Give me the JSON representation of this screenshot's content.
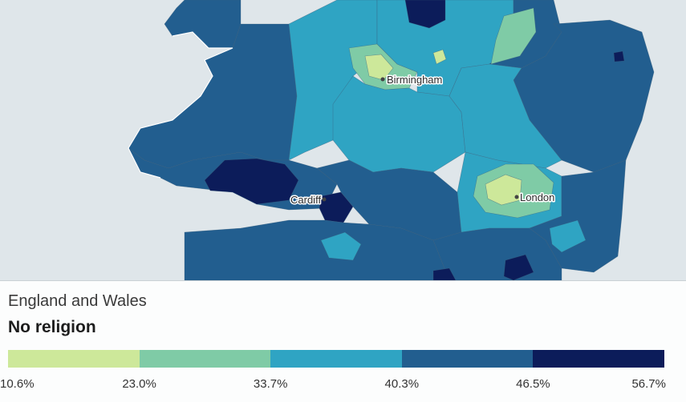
{
  "map": {
    "labels": {
      "birmingham": "Birmingham",
      "cardiff": "Cardiff",
      "london": "London"
    }
  },
  "legend": {
    "area": "England and Wales",
    "measure": "No religion",
    "ticks": [
      "10.6%",
      "23.0%",
      "33.7%",
      "40.3%",
      "46.5%",
      "56.7%"
    ],
    "classes": [
      {
        "min": "10.6%",
        "max": "23.0%",
        "color": "#cde89a"
      },
      {
        "min": "23.0%",
        "max": "33.7%",
        "color": "#7fcba6"
      },
      {
        "min": "33.7%",
        "max": "40.3%",
        "color": "#2fa4c3"
      },
      {
        "min": "40.3%",
        "max": "46.5%",
        "color": "#225e8f"
      },
      {
        "min": "46.5%",
        "max": "56.7%",
        "color": "#0c1c5a"
      }
    ]
  },
  "colors": {
    "sea": "#dfe6ea",
    "land_outside": "#ffffff"
  }
}
